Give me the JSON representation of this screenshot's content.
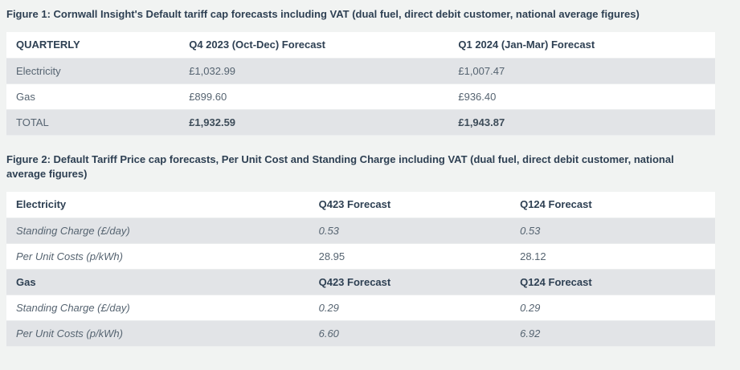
{
  "page": {
    "background": "#f1f3f2",
    "stripe_color": "#e2e4e7",
    "heading_color": "#2e4053",
    "body_text_color": "#566471"
  },
  "figure1": {
    "caption": "Figure 1: Cornwall Insight's Default tariff cap forecasts including VAT (dual fuel, direct debit customer, national average figures)",
    "table": {
      "columns": [
        "QUARTERLY",
        "Q4 2023 (Oct-Dec) Forecast",
        "Q1 2024 (Jan-Mar) Forecast"
      ],
      "rows": [
        {
          "label": "Electricity",
          "values": [
            "£1,032.99",
            "£1,007.47"
          ],
          "bold_values": false
        },
        {
          "label": "Gas",
          "values": [
            "£899.60",
            "£936.40"
          ],
          "bold_values": false
        },
        {
          "label": "TOTAL",
          "values": [
            "£1,932.59",
            "£1,943.87"
          ],
          "bold_values": true
        }
      ]
    }
  },
  "figure2": {
    "caption": "Figure 2: Default Tariff Price cap forecasts, Per Unit Cost and Standing Charge including VAT (dual fuel, direct debit customer, national average figures)",
    "table": {
      "sections": [
        {
          "header": [
            "Electricity",
            "Q423 Forecast",
            "Q124 Forecast"
          ],
          "rows": [
            {
              "label": "Standing Charge (£/day)",
              "values": [
                "0.53",
                "0.53"
              ],
              "italic_values": true
            },
            {
              "label": "Per Unit Costs (p/kWh)",
              "values": [
                "28.95",
                "28.12"
              ],
              "italic_values": false
            }
          ]
        },
        {
          "header": [
            "Gas",
            "Q423 Forecast",
            "Q124 Forecast"
          ],
          "rows": [
            {
              "label": "Standing Charge (£/day)",
              "values": [
                "0.29",
                "0.29"
              ],
              "italic_values": true
            },
            {
              "label": "Per Unit Costs (p/kWh)",
              "values": [
                "6.60",
                "6.92"
              ],
              "italic_values": true
            }
          ]
        }
      ]
    }
  }
}
